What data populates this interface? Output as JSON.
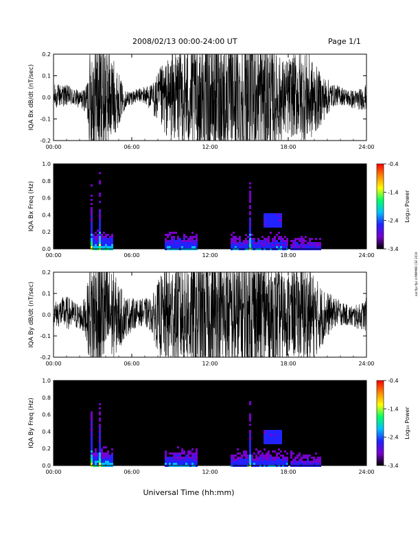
{
  "header": {
    "title": "2008/02/13  00:00-24:00 UT",
    "page": "Page 1/1"
  },
  "side_note": "nat flpr flpr 4 MMMMR CSF 2019",
  "xaxis_label": "Universal Time (hh:mm)",
  "colorbar": {
    "label": "Log₁₀ Power",
    "ticks": [
      "-0.4",
      "-1.4",
      "-2.4",
      "-3.4"
    ],
    "range": [
      -3.4,
      -0.4
    ],
    "colors": [
      "#000000",
      "#7700cc",
      "#2222ff",
      "#00bfff",
      "#00ff66",
      "#ffff00",
      "#ff8800",
      "#ff0000"
    ]
  },
  "chart_data": [
    {
      "type": "line",
      "ylabel": "IQA Bx dB/dt (nT/sec)",
      "xlim": [
        0,
        24
      ],
      "ylim": [
        -0.2,
        0.2
      ],
      "x_ticks": [
        "00:00",
        "06:00",
        "12:00",
        "18:00",
        "24:00"
      ],
      "y_ticks": [
        "-0.2",
        "-0.1",
        "0.0",
        "0.1",
        "0.2"
      ],
      "envelope": {
        "x": [
          0,
          1,
          2,
          2.5,
          2.9,
          3.3,
          3.8,
          4.5,
          5.5,
          6.5,
          7.5,
          8.2,
          9.0,
          10.0,
          11.0,
          12.0,
          12.8,
          13.5,
          14.2,
          15.0,
          16.0,
          17.0,
          17.8,
          18.5,
          19.5,
          20.5,
          21.5,
          22.5,
          23.5,
          24
        ],
        "amplitude": [
          0.06,
          0.05,
          0.04,
          0.06,
          0.3,
          0.35,
          0.3,
          0.2,
          0.04,
          0.03,
          0.06,
          0.15,
          0.2,
          0.25,
          0.28,
          0.3,
          0.3,
          0.28,
          0.3,
          0.35,
          0.3,
          0.22,
          0.18,
          0.2,
          0.22,
          0.12,
          0.05,
          0.04,
          0.05,
          0.06
        ]
      }
    },
    {
      "type": "heatmap",
      "ylabel": "IQA Bx Freq (Hz)",
      "xlim": [
        0,
        24
      ],
      "ylim": [
        0.0,
        1.0
      ],
      "x_ticks": [
        "00:00",
        "06:00",
        "12:00",
        "18:00",
        "24:00"
      ],
      "y_ticks": [
        "0.0",
        "0.2",
        "0.4",
        "0.6",
        "0.8",
        "1.0"
      ],
      "value_range": [
        -3.4,
        -0.4
      ]
    },
    {
      "type": "line",
      "ylabel": "IQA By dB/dt (nT/sec)",
      "xlim": [
        0,
        24
      ],
      "ylim": [
        -0.2,
        0.2
      ],
      "x_ticks": [
        "00:00",
        "06:00",
        "12:00",
        "18:00",
        "24:00"
      ],
      "y_ticks": [
        "-0.2",
        "-0.1",
        "0.0",
        "0.1",
        "0.2"
      ],
      "envelope": {
        "x": [
          0,
          1,
          2,
          2.5,
          2.9,
          3.3,
          3.8,
          4.5,
          5.5,
          6.5,
          7.5,
          8.2,
          9.0,
          10.0,
          11.0,
          12.0,
          12.8,
          13.5,
          14.2,
          15.0,
          16.0,
          17.0,
          17.8,
          18.5,
          19.5,
          20.5,
          21.5,
          22.5,
          23.5,
          24
        ],
        "amplitude": [
          0.06,
          0.08,
          0.06,
          0.1,
          0.3,
          0.35,
          0.3,
          0.22,
          0.1,
          0.06,
          0.08,
          0.2,
          0.25,
          0.28,
          0.3,
          0.3,
          0.3,
          0.28,
          0.3,
          0.35,
          0.3,
          0.25,
          0.2,
          0.22,
          0.25,
          0.15,
          0.07,
          0.05,
          0.06,
          0.08
        ]
      }
    },
    {
      "type": "heatmap",
      "ylabel": "IQA By Freq (Hz)",
      "xlim": [
        0,
        24
      ],
      "ylim": [
        0.0,
        1.0
      ],
      "x_ticks": [
        "00:00",
        "06:00",
        "12:00",
        "18:00",
        "24:00"
      ],
      "y_ticks": [
        "0.0",
        "0.2",
        "0.4",
        "0.6",
        "0.8",
        "1.0"
      ],
      "value_range": [
        -3.4,
        -0.4
      ]
    }
  ]
}
